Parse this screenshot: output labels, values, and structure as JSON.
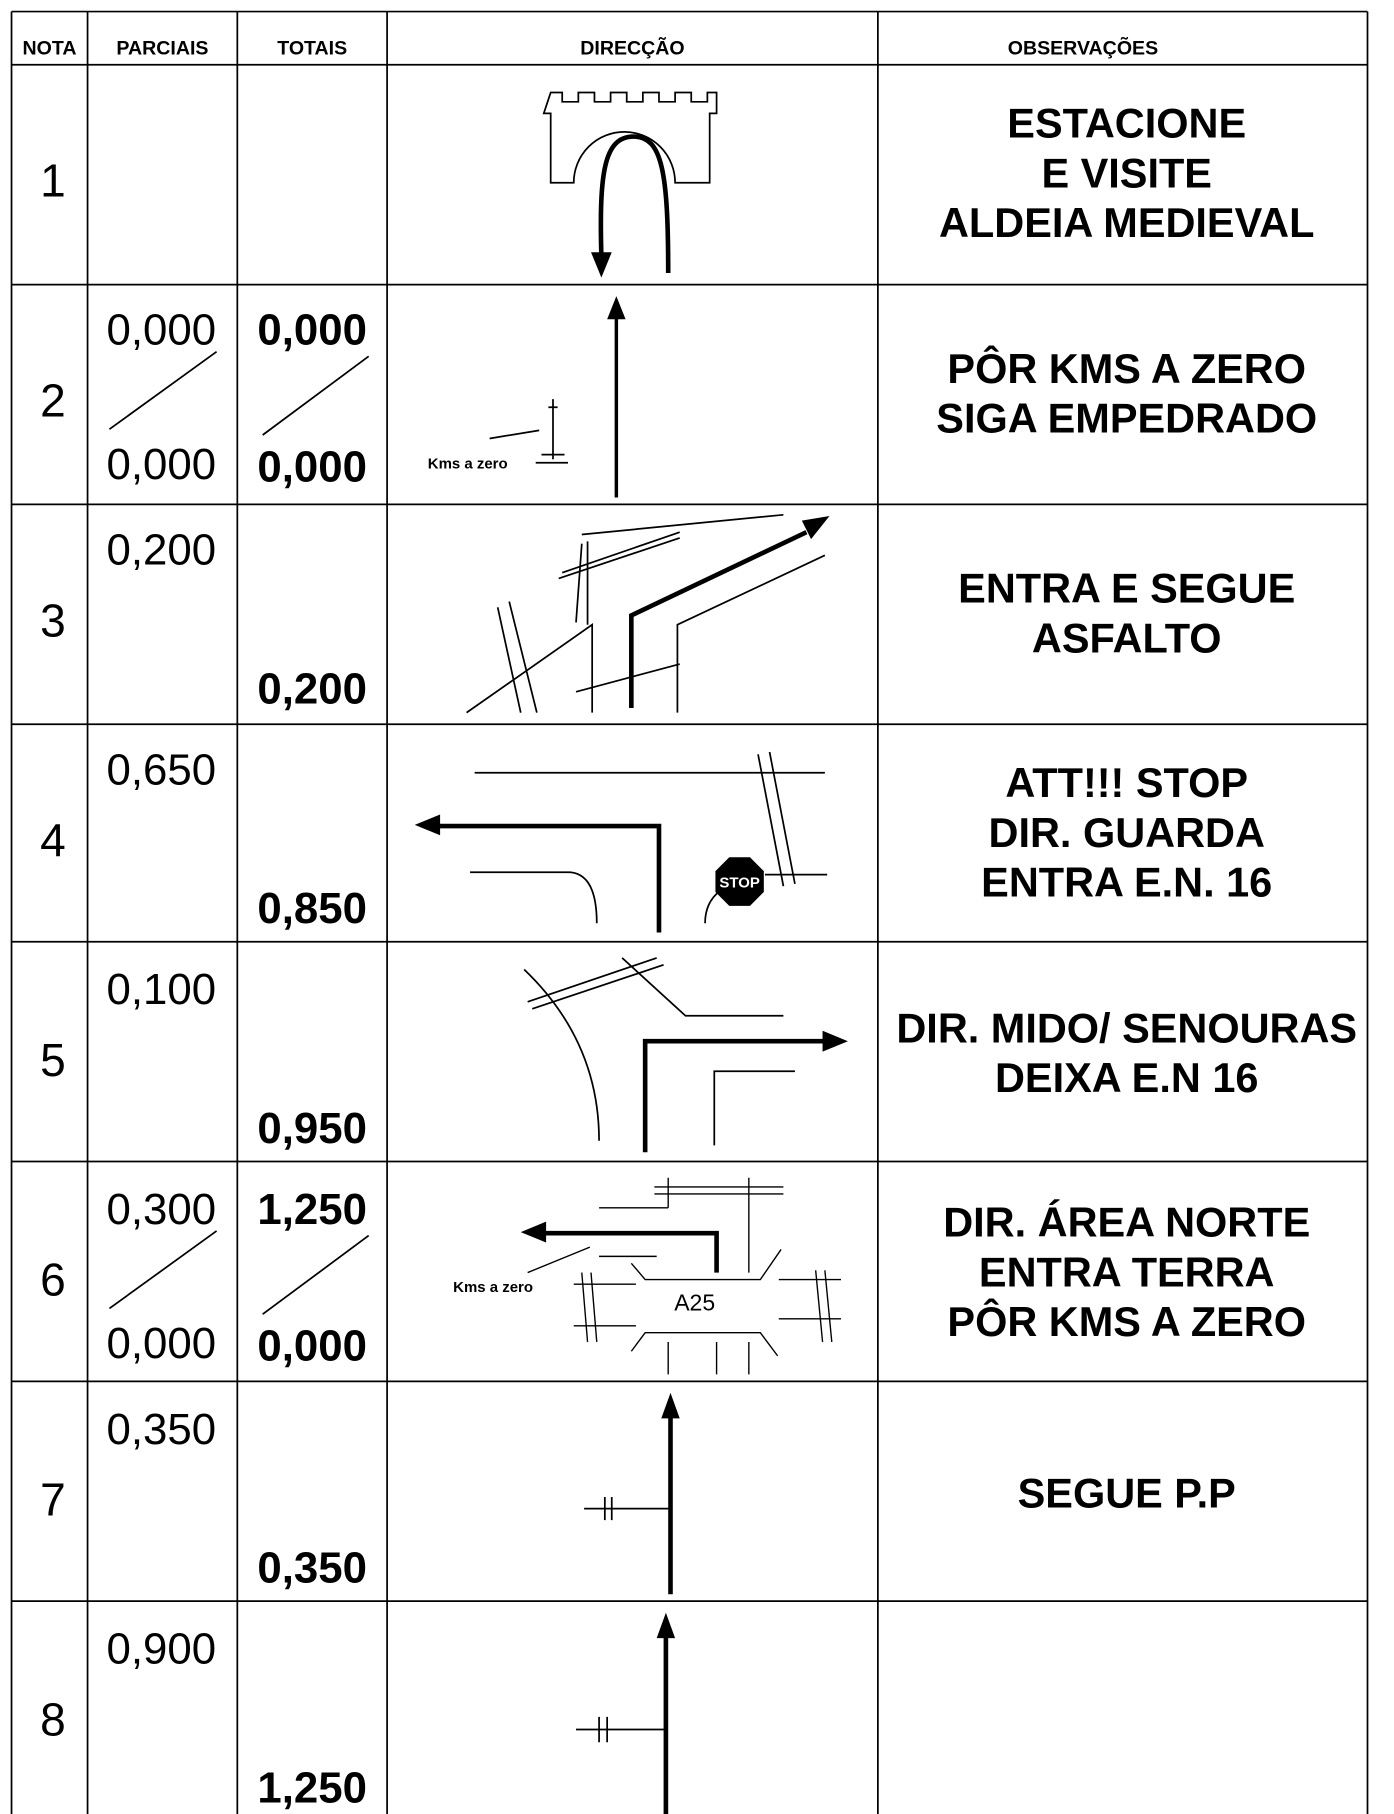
{
  "header": {
    "columns": [
      "NOTA",
      "PARCIAIS",
      "TOTAIS",
      "DIRECÇÃO",
      "OBSERVAÇÕES"
    ]
  },
  "rows": [
    {
      "nota": "1",
      "observacoes": [
        "ESTACIONE",
        "E VISITE",
        "ALDEIA MEDIEVAL"
      ]
    },
    {
      "nota": "2",
      "parciais": [
        "0,000",
        "0,000"
      ],
      "totais": [
        "0,000",
        "0,000"
      ],
      "labels": [
        "Kms a zero"
      ],
      "observacoes": [
        "PÔR KMS A ZERO",
        "SIGA EMPEDRADO"
      ]
    },
    {
      "nota": "3",
      "parciais": [
        "0,200"
      ],
      "totais": [
        "0,200"
      ],
      "observacoes": [
        "ENTRA E SEGUE",
        "ASFALTO"
      ]
    },
    {
      "nota": "4",
      "parciais": [
        "0,650"
      ],
      "totais": [
        "0,850"
      ],
      "labels": [
        "STOP"
      ],
      "observacoes": [
        "ATT!!! STOP",
        "DIR. GUARDA",
        "ENTRA E.N. 16"
      ]
    },
    {
      "nota": "5",
      "parciais": [
        "0,100"
      ],
      "totais": [
        "0,950"
      ],
      "observacoes": [
        "DIR. MIDO/ SENOURAS",
        "DEIXA E.N 16"
      ]
    },
    {
      "nota": "6",
      "parciais": [
        "0,300",
        "0,000"
      ],
      "totais": [
        "1,250",
        "0,000"
      ],
      "labels": [
        "Kms a zero",
        "A25"
      ],
      "observacoes": [
        "DIR. ÁREA NORTE",
        "ENTRA TERRA",
        "PÔR KMS A ZERO"
      ]
    },
    {
      "nota": "7",
      "parciais": [
        "0,350"
      ],
      "totais": [
        "0,350"
      ],
      "observacoes": [
        "SEGUE P.P"
      ]
    },
    {
      "nota": "8",
      "parciais": [
        "0,900"
      ],
      "totais": [
        "1,250"
      ]
    }
  ]
}
